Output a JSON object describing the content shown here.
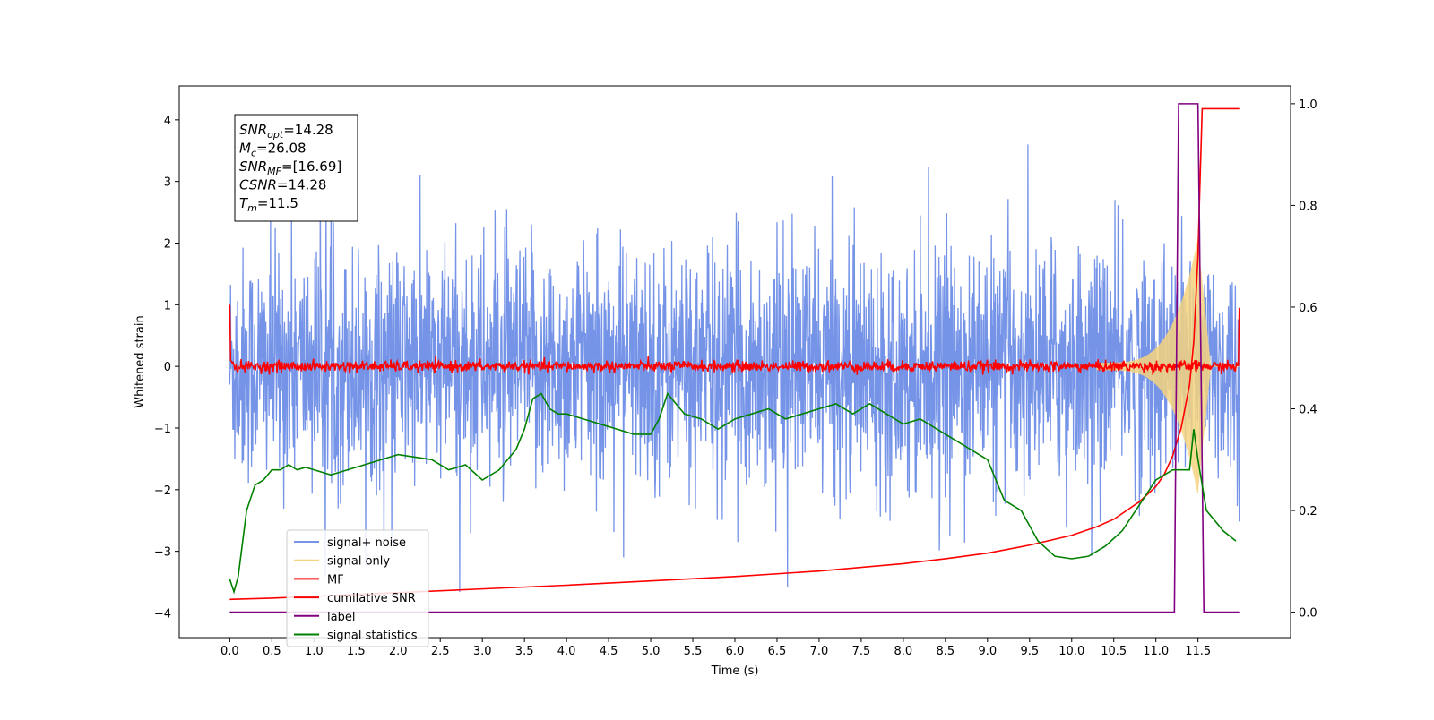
{
  "chart_data": {
    "type": "line",
    "xlabel": "Time (s)",
    "ylabel": "Whitened strain",
    "xlim": [
      -0.6,
      12.6
    ],
    "ylim": [
      -4.4,
      4.55
    ],
    "y2lim": [
      -0.05,
      1.035
    ],
    "x_ticks": [
      0.0,
      0.5,
      1.0,
      1.5,
      2.0,
      2.5,
      3.0,
      3.5,
      4.0,
      4.5,
      5.0,
      5.5,
      6.0,
      6.5,
      7.0,
      7.5,
      8.0,
      8.5,
      9.0,
      9.5,
      10.0,
      10.5,
      11.0,
      11.5
    ],
    "x_tick_labels": [
      "0.0",
      "0.5",
      "1.0",
      "1.5",
      "2.0",
      "2.5",
      "3.0",
      "3.5",
      "4.0",
      "4.5",
      "5.0",
      "5.5",
      "6.0",
      "6.5",
      "7.0",
      "7.5",
      "8.0",
      "8.5",
      "9.0",
      "9.5",
      "10.0",
      "10.5",
      "11.0",
      "11.5"
    ],
    "y_ticks": [
      4,
      3,
      2,
      1,
      0,
      -1,
      -2,
      -3,
      -4
    ],
    "y_tick_labels": [
      "4",
      "3",
      "2",
      "1",
      "0",
      "−1",
      "−2",
      "−3",
      "−4"
    ],
    "y2_ticks": [
      1.0,
      0.8,
      0.6,
      0.4,
      0.2,
      0.0
    ],
    "y2_tick_labels": [
      "1.0",
      "0.8",
      "0.6",
      "0.4",
      "0.2",
      "0.0"
    ],
    "grid": false,
    "legend_position": "lower-left",
    "legend": [
      {
        "label": "signal+ noise",
        "color": "#7594e8"
      },
      {
        "label": "signal only",
        "color": "#f6d37f"
      },
      {
        "label": "MF",
        "color": "#ff0000"
      },
      {
        "label": "cumilative SNR",
        "color": "#ff0000"
      },
      {
        "label": "label",
        "color": "#800080"
      },
      {
        "label": "signal statistics",
        "color": "#008000"
      }
    ],
    "annotation_lines": [
      {
        "var": "SNR",
        "sub": "opt",
        "value": "=14.28"
      },
      {
        "var": "M",
        "sub": "c",
        "value": "=26.08"
      },
      {
        "var": "SNR",
        "sub": "MF",
        "value": "=[16.69]"
      },
      {
        "var": "CSNR",
        "sub": "",
        "value": "=14.28"
      },
      {
        "var": "T",
        "sub": "m",
        "value": "=11.5"
      }
    ],
    "series": [
      {
        "name": "signal+ noise",
        "axis": "left",
        "style": "noise",
        "color": "#7594e8",
        "x_range": [
          0.0,
          11.99
        ],
        "noise_amplitude": 2.6
      },
      {
        "name": "signal only",
        "axis": "left",
        "style": "chirp",
        "color": "#f6d37f",
        "x_range": [
          10.3,
          11.99
        ],
        "peak_amplitude": 2.0,
        "peak_time": 11.5
      },
      {
        "name": "MF",
        "axis": "left",
        "style": "mf",
        "color": "#ff0000",
        "x": [
          0.0,
          0.01,
          0.03,
          11.98,
          11.99
        ],
        "y": [
          1.0,
          0.1,
          0.0,
          0.0,
          0.95
        ]
      },
      {
        "name": "cumilative SNR",
        "axis": "left",
        "color": "#ff0000",
        "x": [
          0.0,
          0.5,
          1.0,
          2.0,
          3.0,
          4.0,
          5.0,
          6.0,
          7.0,
          8.0,
          8.5,
          9.0,
          9.5,
          10.0,
          10.3,
          10.5,
          10.8,
          11.0,
          11.1,
          11.2,
          11.3,
          11.4,
          11.45,
          11.5,
          11.52,
          11.55,
          11.99
        ],
        "y": [
          -3.78,
          -3.76,
          -3.73,
          -3.67,
          -3.61,
          -3.55,
          -3.48,
          -3.41,
          -3.32,
          -3.2,
          -3.12,
          -3.03,
          -2.9,
          -2.74,
          -2.6,
          -2.48,
          -2.2,
          -1.95,
          -1.75,
          -1.45,
          -1.0,
          -0.3,
          0.4,
          1.8,
          2.8,
          4.18,
          4.18
        ]
      },
      {
        "name": "label",
        "axis": "right",
        "color": "#800080",
        "x": [
          0.0,
          11.22,
          11.27,
          11.5,
          11.57,
          11.99
        ],
        "y": [
          0.0,
          0.0,
          1.0,
          1.0,
          0.0,
          0.0
        ]
      },
      {
        "name": "signal statistics",
        "axis": "right",
        "color": "#008000",
        "x": [
          0.0,
          0.05,
          0.1,
          0.2,
          0.3,
          0.4,
          0.5,
          0.6,
          0.7,
          0.8,
          0.9,
          1.0,
          1.2,
          1.4,
          1.6,
          1.8,
          2.0,
          2.2,
          2.4,
          2.6,
          2.8,
          3.0,
          3.2,
          3.4,
          3.5,
          3.6,
          3.7,
          3.8,
          3.9,
          4.0,
          4.2,
          4.4,
          4.6,
          4.8,
          5.0,
          5.1,
          5.2,
          5.3,
          5.4,
          5.6,
          5.8,
          6.0,
          6.2,
          6.4,
          6.6,
          6.8,
          7.0,
          7.2,
          7.4,
          7.6,
          7.8,
          8.0,
          8.2,
          8.4,
          8.6,
          8.8,
          9.0,
          9.2,
          9.4,
          9.6,
          9.8,
          10.0,
          10.2,
          10.4,
          10.6,
          10.8,
          11.0,
          11.2,
          11.4,
          11.45,
          11.5,
          11.6,
          11.8,
          11.95
        ],
        "y": [
          0.065,
          0.04,
          0.07,
          0.2,
          0.25,
          0.26,
          0.28,
          0.28,
          0.29,
          0.28,
          0.285,
          0.28,
          0.27,
          0.28,
          0.29,
          0.3,
          0.31,
          0.305,
          0.3,
          0.28,
          0.29,
          0.26,
          0.28,
          0.32,
          0.36,
          0.42,
          0.43,
          0.4,
          0.39,
          0.39,
          0.38,
          0.37,
          0.36,
          0.35,
          0.35,
          0.38,
          0.43,
          0.41,
          0.39,
          0.38,
          0.36,
          0.38,
          0.39,
          0.4,
          0.38,
          0.39,
          0.4,
          0.41,
          0.39,
          0.41,
          0.39,
          0.37,
          0.38,
          0.36,
          0.34,
          0.32,
          0.3,
          0.22,
          0.2,
          0.14,
          0.11,
          0.105,
          0.11,
          0.13,
          0.16,
          0.21,
          0.26,
          0.28,
          0.28,
          0.36,
          0.3,
          0.2,
          0.16,
          0.14
        ]
      }
    ]
  }
}
